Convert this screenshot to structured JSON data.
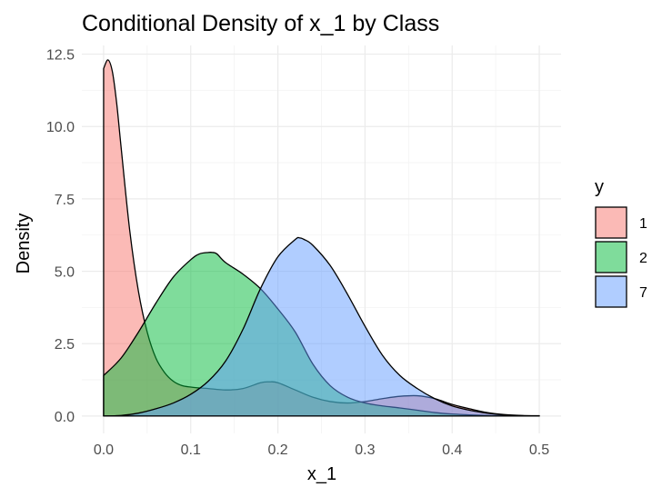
{
  "chart_data": {
    "type": "area",
    "title": "Conditional Density of x_1 by Class",
    "xlabel": "x_1",
    "ylabel": "Density",
    "xlim": [
      -0.025,
      0.525
    ],
    "ylim": [
      -0.6,
      12.8
    ],
    "x_ticks": [
      0.0,
      0.1,
      0.2,
      0.3,
      0.4,
      0.5
    ],
    "x_tick_labels": [
      "0.0",
      "0.1",
      "0.2",
      "0.3",
      "0.4",
      "0.5"
    ],
    "y_ticks": [
      0.0,
      2.5,
      5.0,
      7.5,
      10.0,
      12.5
    ],
    "y_tick_labels": [
      "0.0",
      "2.5",
      "5.0",
      "7.5",
      "10.0",
      "12.5"
    ],
    "grid": true,
    "legend": {
      "title": "y",
      "position": "right"
    },
    "series": [
      {
        "name": "1",
        "color": "#F8766D",
        "x": [
          0.0,
          0.005,
          0.01,
          0.015,
          0.02,
          0.03,
          0.04,
          0.05,
          0.06,
          0.07,
          0.08,
          0.09,
          0.1,
          0.11,
          0.12,
          0.14,
          0.16,
          0.18,
          0.19,
          0.2,
          0.22,
          0.24,
          0.26,
          0.28,
          0.3,
          0.32,
          0.34,
          0.36,
          0.38,
          0.4,
          0.42,
          0.44,
          0.46,
          0.48,
          0.5
        ],
        "y": [
          12.0,
          12.3,
          11.9,
          10.8,
          9.3,
          6.4,
          4.3,
          2.9,
          2.0,
          1.5,
          1.2,
          1.05,
          1.0,
          0.97,
          0.95,
          0.9,
          0.95,
          1.15,
          1.18,
          1.15,
          0.9,
          0.65,
          0.5,
          0.45,
          0.5,
          0.6,
          0.68,
          0.7,
          0.6,
          0.4,
          0.25,
          0.12,
          0.05,
          0.02,
          0.01
        ]
      },
      {
        "name": "2",
        "color": "#00BA38",
        "x": [
          0.0,
          0.02,
          0.04,
          0.06,
          0.08,
          0.1,
          0.11,
          0.12,
          0.125,
          0.13,
          0.14,
          0.16,
          0.18,
          0.2,
          0.22,
          0.24,
          0.26,
          0.28,
          0.3,
          0.32,
          0.34,
          0.36,
          0.38,
          0.4,
          0.42,
          0.44,
          0.46
        ],
        "y": [
          1.4,
          2.0,
          2.9,
          3.9,
          4.8,
          5.4,
          5.6,
          5.65,
          5.65,
          5.6,
          5.3,
          4.9,
          4.4,
          3.7,
          2.9,
          1.8,
          1.05,
          0.65,
          0.45,
          0.35,
          0.28,
          0.2,
          0.12,
          0.07,
          0.04,
          0.02,
          0.01
        ]
      },
      {
        "name": "7",
        "color": "#619CFF",
        "x": [
          0.0,
          0.02,
          0.04,
          0.06,
          0.08,
          0.1,
          0.12,
          0.14,
          0.16,
          0.18,
          0.2,
          0.22,
          0.225,
          0.23,
          0.24,
          0.26,
          0.28,
          0.3,
          0.32,
          0.34,
          0.36,
          0.38,
          0.4,
          0.42,
          0.44,
          0.46,
          0.48,
          0.5
        ],
        "y": [
          0.0,
          0.02,
          0.1,
          0.25,
          0.45,
          0.75,
          1.2,
          1.9,
          3.0,
          4.4,
          5.5,
          6.1,
          6.15,
          6.1,
          5.9,
          5.2,
          4.2,
          3.1,
          2.1,
          1.4,
          0.95,
          0.6,
          0.35,
          0.2,
          0.1,
          0.04,
          0.01,
          0.0
        ]
      }
    ]
  }
}
